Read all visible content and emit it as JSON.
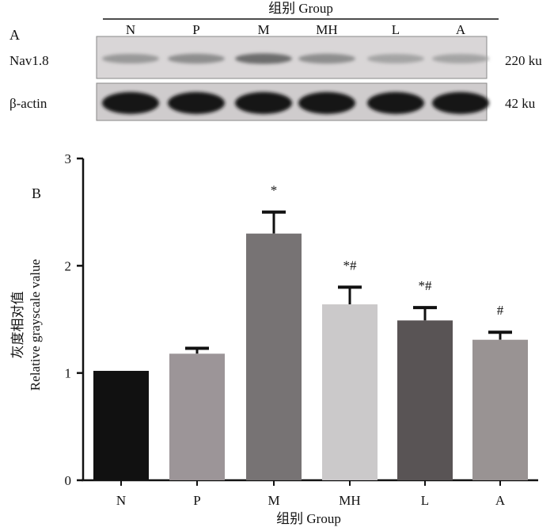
{
  "panel_a": {
    "label": "A",
    "header": "组别 Group",
    "lanes": [
      "N",
      "P",
      "M",
      "MH",
      "L",
      "A"
    ],
    "rows": [
      {
        "name": "Nav1.8",
        "size": "220 ku",
        "intensity": [
          0.35,
          0.4,
          0.55,
          0.4,
          0.3,
          0.3
        ]
      },
      {
        "name": "β-actin",
        "size": "42 ku",
        "intensity": [
          0.95,
          0.95,
          0.95,
          0.95,
          0.95,
          0.95
        ]
      }
    ]
  },
  "chart_data": {
    "type": "bar",
    "panel_label": "B",
    "categories": [
      "N",
      "P",
      "M",
      "MH",
      "L",
      "A"
    ],
    "values": [
      1.02,
      1.18,
      2.3,
      1.64,
      1.49,
      1.31
    ],
    "errors": [
      0,
      0.05,
      0.2,
      0.16,
      0.12,
      0.07
    ],
    "significance": [
      "",
      "",
      "*",
      "*#",
      "*#",
      "#"
    ],
    "colors": [
      "#111111",
      "#9c9598",
      "#777374",
      "#cbc9ca",
      "#595455",
      "#999393"
    ],
    "xlabel": "组别 Group",
    "ylabel_cn": "灰度相对值",
    "ylabel_en": "Relative grayscale value",
    "ylim": [
      0,
      3
    ],
    "yticks": [
      0,
      1,
      2,
      3
    ],
    "grid": false
  }
}
